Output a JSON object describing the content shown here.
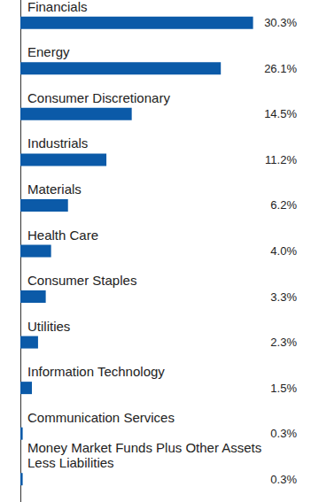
{
  "chart_data": {
    "type": "bar",
    "orientation": "horizontal",
    "categories": [
      "Financials",
      "Energy",
      "Consumer Discretionary",
      "Industrials",
      "Materials",
      "Health Care",
      "Consumer Staples",
      "Utilities",
      "Information Technology",
      "Communication Services",
      "Money Market Funds Plus Other Assets\nLess Liabilities"
    ],
    "values": [
      30.3,
      26.1,
      14.5,
      11.2,
      6.2,
      4.0,
      3.3,
      2.3,
      1.5,
      0.3,
      0.3
    ],
    "value_labels": [
      "30.3%",
      "26.1%",
      "14.5%",
      "11.2%",
      "6.2%",
      "4.0%",
      "3.3%",
      "2.3%",
      "1.5%",
      "0.3%",
      "0.3%"
    ],
    "color": "#0b5aa8",
    "xlim": [
      0,
      36
    ],
    "grid": false,
    "tick_labels": false,
    "data_labels": true
  }
}
